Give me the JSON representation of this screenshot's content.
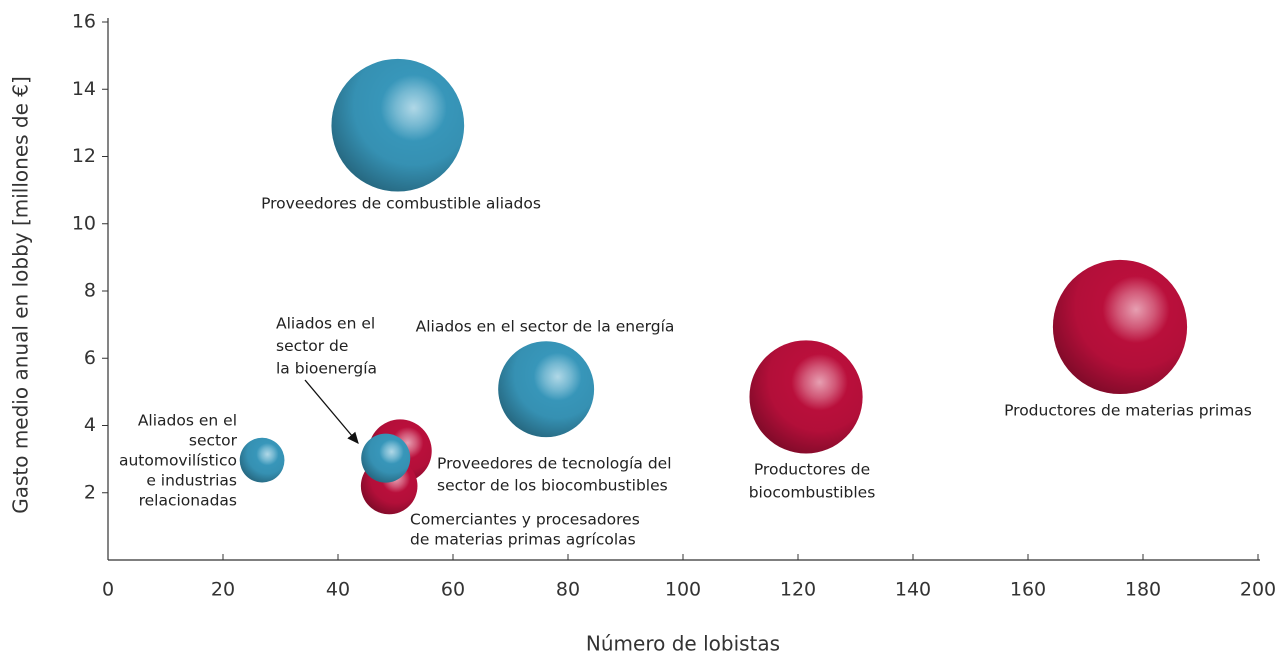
{
  "chart_data": {
    "type": "bubble",
    "xlabel": "Número de lobistas",
    "ylabel": "Gasto medio anual en lobby [millones de €]",
    "xlim": [
      0,
      200
    ],
    "xticks": [
      0,
      20,
      40,
      60,
      80,
      100,
      120,
      140,
      160,
      180,
      200
    ],
    "ylim": [
      0,
      16
    ],
    "yticks": [
      2,
      4,
      6,
      8,
      10,
      12,
      14,
      16
    ],
    "x": [
      50.4,
      76.2,
      121.4,
      176,
      26.8,
      50.8,
      48.9,
      48.3
    ],
    "values": [
      12.93,
      5.08,
      4.85,
      6.93,
      2.97,
      3.24,
      2.2,
      3.03
    ],
    "sizes": [
      44,
      23,
      32,
      45,
      5,
      10,
      8,
      6
    ],
    "colors": [
      "#3a9dc2",
      "#3a9dc2",
      "#c2103e",
      "#c2103e",
      "#3a9dc2",
      "#c2103e",
      "#c2103e",
      "#3a9dc2"
    ],
    "labels": [
      [
        "Proveedores de combustible aliados"
      ],
      [
        "Aliados en el sector de la energía"
      ],
      [
        "Productores de",
        "biocombustibles"
      ],
      [
        "Productores de materias primas"
      ],
      [
        "Aliados en el",
        "sector",
        "automovilístico",
        "e industrias",
        "relacionadas"
      ],
      [
        "Proveedores de tecnología del",
        "sector de los biocombustibles"
      ],
      [
        "Comerciantes y procesadores",
        "de materias primas agrícolas"
      ],
      [
        "Aliados en el",
        "sector de",
        "la bioenergía"
      ]
    ]
  }
}
